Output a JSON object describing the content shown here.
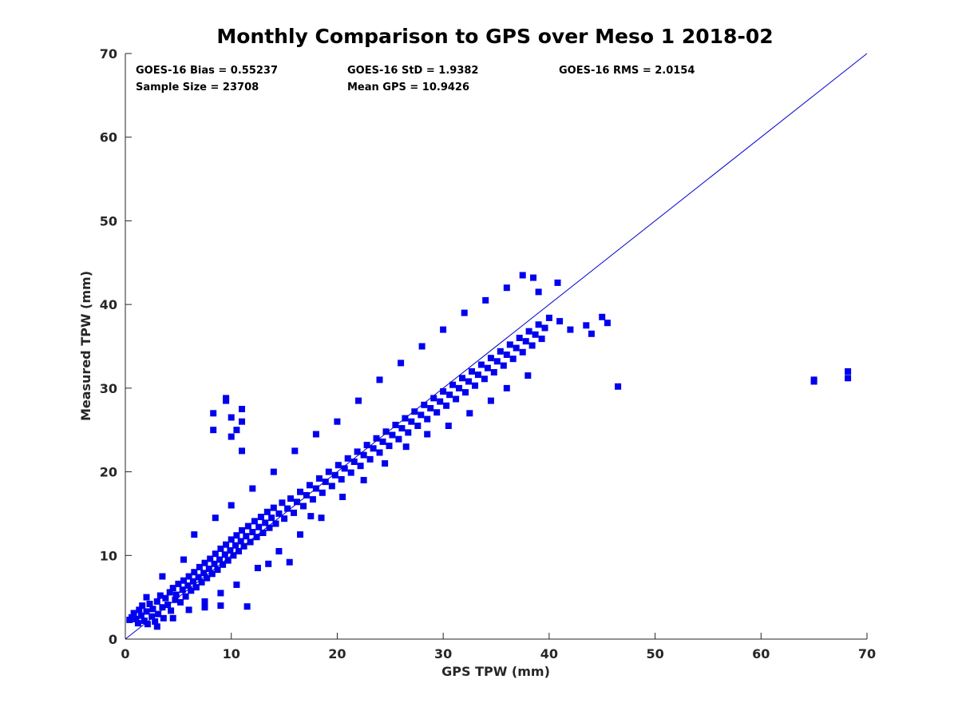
{
  "chart_data": {
    "type": "scatter",
    "title": "Monthly Comparison to GPS over Meso 1 2018-02",
    "xlabel": "GPS TPW (mm)",
    "ylabel": "Measured TPW (mm)",
    "xlim": [
      0,
      70
    ],
    "ylim": [
      0,
      70
    ],
    "xticks": [
      "0",
      "10",
      "20",
      "30",
      "40",
      "50",
      "60",
      "70"
    ],
    "yticks": [
      "0",
      "10",
      "20",
      "30",
      "40",
      "50",
      "60",
      "70"
    ],
    "grid": false,
    "marker_color": "#0000ee",
    "line_color": "#0000cc",
    "reference_line": {
      "name": "1:1 line",
      "x": [
        0,
        70
      ],
      "y": [
        0,
        70
      ]
    },
    "stats": {
      "bias": "GOES-16 Bias = 0.55237",
      "std": "GOES-16 StD = 1.9382",
      "rms": "GOES-16 RMS = 2.0154",
      "sample_size": "Sample Size = 23708",
      "mean_gps": "Mean GPS = 10.9426"
    },
    "points": [
      [
        0.4,
        2.3
      ],
      [
        0.6,
        2.6
      ],
      [
        0.8,
        3.1
      ],
      [
        1.0,
        2.4
      ],
      [
        1.2,
        1.9
      ],
      [
        1.3,
        3.5
      ],
      [
        1.5,
        2.8
      ],
      [
        1.6,
        4.0
      ],
      [
        1.8,
        2.2
      ],
      [
        2.0,
        3.3
      ],
      [
        2.1,
        1.8
      ],
      [
        2.3,
        4.2
      ],
      [
        2.5,
        2.7
      ],
      [
        2.6,
        3.6
      ],
      [
        2.8,
        2.1
      ],
      [
        3.0,
        4.5
      ],
      [
        3.1,
        3.0
      ],
      [
        3.3,
        5.2
      ],
      [
        3.5,
        3.8
      ],
      [
        3.6,
        2.5
      ],
      [
        3.8,
        4.9
      ],
      [
        4.0,
        4.1
      ],
      [
        4.2,
        5.6
      ],
      [
        4.3,
        3.4
      ],
      [
        4.5,
        6.1
      ],
      [
        4.7,
        4.7
      ],
      [
        4.8,
        5.3
      ],
      [
        5.0,
        6.6
      ],
      [
        5.2,
        4.4
      ],
      [
        5.4,
        5.9
      ],
      [
        5.5,
        7.0
      ],
      [
        5.7,
        5.1
      ],
      [
        5.9,
        6.4
      ],
      [
        6.0,
        7.5
      ],
      [
        6.2,
        5.8
      ],
      [
        6.4,
        6.9
      ],
      [
        6.5,
        8.0
      ],
      [
        6.7,
        6.2
      ],
      [
        6.9,
        7.4
      ],
      [
        7.0,
        8.6
      ],
      [
        7.2,
        6.8
      ],
      [
        7.4,
        7.9
      ],
      [
        7.5,
        9.1
      ],
      [
        7.7,
        7.3
      ],
      [
        7.9,
        8.4
      ],
      [
        8.0,
        9.6
      ],
      [
        8.2,
        7.8
      ],
      [
        8.4,
        9.0
      ],
      [
        8.5,
        10.2
      ],
      [
        8.7,
        8.3
      ],
      [
        8.9,
        9.5
      ],
      [
        9.0,
        10.8
      ],
      [
        9.2,
        8.9
      ],
      [
        9.4,
        10.1
      ],
      [
        9.5,
        11.3
      ],
      [
        9.7,
        9.4
      ],
      [
        9.9,
        10.6
      ],
      [
        10.0,
        11.9
      ],
      [
        10.2,
        10.0
      ],
      [
        10.4,
        11.2
      ],
      [
        10.5,
        12.4
      ],
      [
        10.7,
        10.5
      ],
      [
        10.9,
        11.7
      ],
      [
        11.0,
        13.0
      ],
      [
        11.2,
        11.1
      ],
      [
        11.4,
        12.3
      ],
      [
        11.6,
        13.5
      ],
      [
        11.8,
        11.6
      ],
      [
        12.0,
        12.8
      ],
      [
        12.2,
        14.1
      ],
      [
        12.4,
        12.2
      ],
      [
        12.6,
        13.4
      ],
      [
        12.8,
        14.6
      ],
      [
        13.0,
        12.7
      ],
      [
        13.2,
        13.9
      ],
      [
        13.4,
        15.2
      ],
      [
        13.6,
        13.3
      ],
      [
        13.8,
        14.5
      ],
      [
        14.0,
        15.7
      ],
      [
        14.2,
        13.8
      ],
      [
        14.5,
        15.0
      ],
      [
        14.8,
        16.3
      ],
      [
        15.0,
        14.4
      ],
      [
        15.3,
        15.6
      ],
      [
        15.6,
        16.8
      ],
      [
        15.9,
        15.1
      ],
      [
        16.2,
        16.4
      ],
      [
        16.5,
        17.6
      ],
      [
        16.8,
        15.9
      ],
      [
        17.1,
        17.2
      ],
      [
        17.4,
        18.4
      ],
      [
        17.7,
        16.7
      ],
      [
        18.0,
        18.0
      ],
      [
        18.3,
        19.2
      ],
      [
        18.6,
        17.5
      ],
      [
        18.9,
        18.8
      ],
      [
        19.2,
        20.0
      ],
      [
        19.5,
        18.3
      ],
      [
        19.8,
        19.6
      ],
      [
        20.1,
        20.8
      ],
      [
        20.4,
        19.1
      ],
      [
        20.7,
        20.4
      ],
      [
        21.0,
        21.6
      ],
      [
        21.3,
        19.9
      ],
      [
        21.6,
        21.2
      ],
      [
        21.9,
        22.4
      ],
      [
        22.2,
        20.7
      ],
      [
        22.5,
        22.0
      ],
      [
        22.8,
        23.2
      ],
      [
        23.1,
        21.5
      ],
      [
        23.4,
        22.8
      ],
      [
        23.7,
        24.0
      ],
      [
        24.0,
        22.3
      ],
      [
        24.3,
        23.6
      ],
      [
        24.6,
        24.8
      ],
      [
        24.9,
        23.1
      ],
      [
        25.2,
        24.4
      ],
      [
        25.5,
        25.6
      ],
      [
        25.8,
        23.9
      ],
      [
        26.1,
        25.2
      ],
      [
        26.4,
        26.4
      ],
      [
        26.7,
        24.7
      ],
      [
        27.0,
        26.0
      ],
      [
        27.3,
        27.2
      ],
      [
        27.6,
        25.5
      ],
      [
        27.9,
        26.8
      ],
      [
        28.2,
        28.0
      ],
      [
        28.5,
        26.3
      ],
      [
        28.8,
        27.6
      ],
      [
        29.1,
        28.8
      ],
      [
        29.4,
        27.1
      ],
      [
        29.7,
        28.4
      ],
      [
        30.0,
        29.6
      ],
      [
        30.3,
        27.9
      ],
      [
        30.6,
        29.2
      ],
      [
        30.9,
        30.4
      ],
      [
        31.2,
        28.7
      ],
      [
        31.5,
        30.0
      ],
      [
        31.8,
        31.2
      ],
      [
        32.1,
        29.5
      ],
      [
        32.4,
        30.8
      ],
      [
        32.7,
        32.0
      ],
      [
        33.0,
        30.3
      ],
      [
        33.3,
        31.6
      ],
      [
        33.6,
        32.8
      ],
      [
        33.9,
        31.1
      ],
      [
        34.2,
        32.4
      ],
      [
        34.5,
        33.6
      ],
      [
        34.8,
        31.9
      ],
      [
        35.1,
        33.2
      ],
      [
        35.4,
        34.4
      ],
      [
        35.7,
        32.7
      ],
      [
        36.0,
        34.0
      ],
      [
        36.3,
        35.2
      ],
      [
        36.6,
        33.5
      ],
      [
        36.9,
        34.8
      ],
      [
        37.2,
        36.0
      ],
      [
        37.5,
        34.3
      ],
      [
        37.8,
        35.6
      ],
      [
        38.1,
        36.8
      ],
      [
        38.4,
        35.1
      ],
      [
        38.7,
        36.4
      ],
      [
        39.0,
        37.6
      ],
      [
        39.3,
        35.9
      ],
      [
        39.6,
        37.2
      ],
      [
        40.0,
        38.4
      ],
      [
        2.0,
        5.0
      ],
      [
        3.5,
        7.5
      ],
      [
        5.5,
        9.5
      ],
      [
        6.5,
        12.5
      ],
      [
        8.5,
        14.5
      ],
      [
        10.0,
        16.0
      ],
      [
        12.0,
        18.0
      ],
      [
        14.0,
        20.0
      ],
      [
        16.0,
        22.5
      ],
      [
        18.0,
        24.5
      ],
      [
        20.0,
        26.0
      ],
      [
        22.0,
        28.5
      ],
      [
        24.0,
        31.0
      ],
      [
        26.0,
        33.0
      ],
      [
        28.0,
        35.0
      ],
      [
        30.0,
        37.0
      ],
      [
        32.0,
        39.0
      ],
      [
        34.0,
        40.5
      ],
      [
        36.0,
        42.0
      ],
      [
        37.5,
        43.5
      ],
      [
        38.5,
        43.2
      ],
      [
        39.0,
        41.5
      ],
      [
        40.8,
        42.6
      ],
      [
        3.0,
        1.5
      ],
      [
        4.5,
        2.5
      ],
      [
        6.0,
        3.5
      ],
      [
        7.5,
        4.5
      ],
      [
        9.0,
        5.5
      ],
      [
        10.5,
        6.5
      ],
      [
        12.5,
        8.5
      ],
      [
        14.5,
        10.5
      ],
      [
        16.5,
        12.5
      ],
      [
        18.5,
        14.5
      ],
      [
        20.5,
        17.0
      ],
      [
        22.5,
        19.0
      ],
      [
        24.5,
        21.0
      ],
      [
        26.5,
        23.0
      ],
      [
        28.5,
        24.5
      ],
      [
        30.5,
        25.5
      ],
      [
        32.5,
        27.0
      ],
      [
        34.5,
        28.5
      ],
      [
        36.0,
        30.0
      ],
      [
        38.0,
        31.5
      ],
      [
        7.5,
        3.8
      ],
      [
        9.0,
        4.0
      ],
      [
        11.5,
        3.9
      ],
      [
        13.5,
        9.0
      ],
      [
        15.5,
        9.2
      ],
      [
        17.5,
        14.7
      ],
      [
        8.3,
        25.0
      ],
      [
        8.3,
        27.0
      ],
      [
        9.5,
        28.5
      ],
      [
        9.5,
        28.8
      ],
      [
        10.0,
        24.2
      ],
      [
        10.0,
        26.5
      ],
      [
        10.5,
        25.0
      ],
      [
        11.0,
        27.5
      ],
      [
        11.0,
        26.0
      ],
      [
        11.0,
        22.5
      ],
      [
        41.0,
        38.0
      ],
      [
        42.0,
        37.0
      ],
      [
        43.5,
        37.5
      ],
      [
        44.0,
        36.5
      ],
      [
        45.0,
        38.5
      ],
      [
        45.5,
        37.8
      ],
      [
        46.5,
        30.2
      ],
      [
        65.0,
        30.8
      ],
      [
        65.0,
        31.0
      ],
      [
        68.2,
        31.2
      ],
      [
        68.2,
        32.0
      ]
    ]
  }
}
